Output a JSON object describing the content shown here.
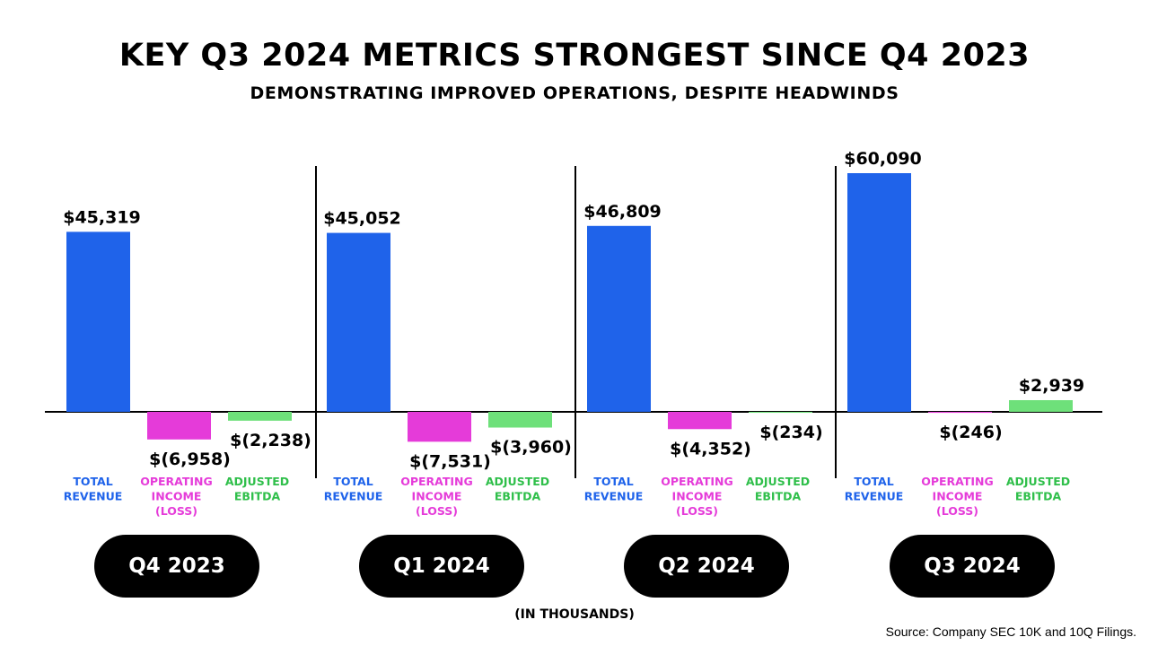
{
  "header": {
    "title": "KEY Q3 2024 METRICS STRONGEST SINCE Q4 2023",
    "subtitle": "DEMONSTRATING IMPROVED OPERATIONS, DESPITE HEADWINDS"
  },
  "footer": {
    "unit_note": "(IN THOUSANDS)",
    "source": "Source: Company SEC 10K and 10Q Filings."
  },
  "colors": {
    "total_revenue": "#1f63ea",
    "operating_income": "#e53bd9",
    "adjusted_ebitda": "#6ee07a",
    "operating_income_label": "#e53bd9",
    "adjusted_ebitda_label": "#2fbf4a"
  },
  "chart_data": {
    "type": "bar",
    "title": "KEY Q3 2024 METRICS STRONGEST SINCE Q4 2023",
    "subtitle": "DEMONSTRATING IMPROVED OPERATIONS, DESPITE HEADWINDS",
    "unit": "(IN THOUSANDS)",
    "categories": [
      "Q4 2023",
      "Q1 2024",
      "Q2 2024",
      "Q3 2024"
    ],
    "metric_labels": [
      [
        "TOTAL",
        "REVENUE"
      ],
      [
        "OPERATING",
        "INCOME",
        "(LOSS)"
      ],
      [
        "ADJUSTED",
        "EBITDA"
      ]
    ],
    "series": [
      {
        "name": "Total Revenue",
        "values": [
          45319,
          45052,
          46809,
          60090
        ],
        "labels": [
          "$45,319",
          "$45,052",
          "$46,809",
          "$60,090"
        ]
      },
      {
        "name": "Operating Income (Loss)",
        "values": [
          -6958,
          -7531,
          -4352,
          -246
        ],
        "labels": [
          "$(6,958)",
          "$(7,531)",
          "$(4,352)",
          "$(246)"
        ]
      },
      {
        "name": "Adjusted EBITDA",
        "values": [
          -2238,
          -3960,
          -234,
          2939
        ],
        "labels": [
          "$(2,238)",
          "$(3,960)",
          "$(234)",
          "$2,939"
        ]
      }
    ]
  }
}
